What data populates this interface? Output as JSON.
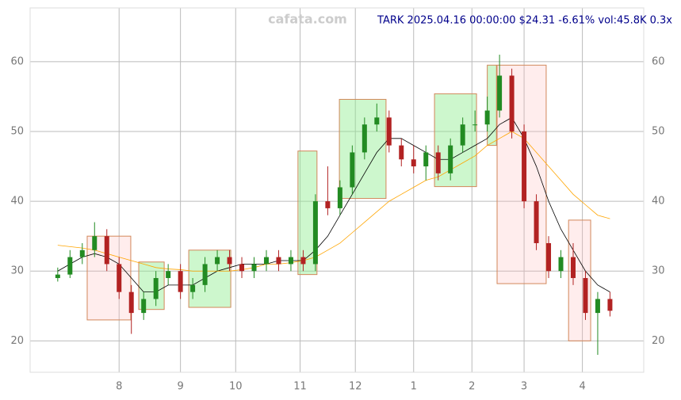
{
  "chart_data": {
    "type": "candlestick",
    "title": "TARK 2025.04.16 00:00:00 $24.31 -6.61% vol:45.8K 0.3x",
    "watermark": "cafata.com",
    "xlim": [
      0,
      200
    ],
    "xticks": [
      {
        "value": 29,
        "label": "8"
      },
      {
        "value": 49,
        "label": "9"
      },
      {
        "value": 67,
        "label": "10"
      },
      {
        "value": 88,
        "label": "11"
      },
      {
        "value": 106,
        "label": "12"
      },
      {
        "value": 125,
        "label": "1"
      },
      {
        "value": 144,
        "label": "2"
      },
      {
        "value": 161,
        "label": "3"
      },
      {
        "value": 180,
        "label": "4"
      }
    ],
    "ylim": [
      15.5,
      67.7
    ],
    "yticks": [
      20,
      30,
      40,
      50,
      60
    ],
    "grid": true,
    "up_color": "#228b22",
    "down_color": "#b22222",
    "x": [
      9,
      13,
      17,
      21,
      25,
      29,
      33,
      37,
      41,
      45,
      49,
      53,
      57,
      61,
      65,
      69,
      73,
      77,
      81,
      85,
      89,
      93,
      97,
      101,
      105,
      109,
      113,
      117,
      121,
      125,
      129,
      133,
      137,
      141,
      145,
      149,
      153,
      157,
      161,
      165,
      169,
      173,
      177,
      181,
      185,
      189
    ],
    "open": [
      29,
      29.5,
      32,
      33,
      35,
      31,
      27,
      24,
      26,
      29,
      30,
      27,
      28,
      31,
      32,
      31,
      30,
      31,
      32,
      31,
      32,
      31,
      40,
      39,
      42,
      47,
      51,
      52,
      48,
      46,
      45,
      47,
      44,
      48,
      51,
      51,
      53,
      58,
      50,
      40,
      34,
      30,
      32,
      29,
      24,
      26
    ],
    "high": [
      30.5,
      33,
      34,
      37,
      36,
      32,
      28,
      27,
      30,
      31,
      31,
      29,
      32,
      33,
      33,
      32,
      32,
      33,
      33,
      33,
      33,
      41,
      45,
      43,
      48,
      52,
      54,
      53,
      49,
      48,
      48,
      48,
      49,
      52,
      53,
      55,
      61,
      59,
      51,
      41,
      35,
      33,
      34,
      30,
      27,
      27
    ],
    "low": [
      28.5,
      29,
      31,
      32,
      30,
      26,
      21,
      23,
      25,
      28,
      26,
      26,
      27,
      30,
      30,
      29,
      29,
      30,
      30,
      30,
      30,
      30,
      38,
      38,
      41,
      46,
      50,
      47,
      45,
      44,
      43,
      43,
      43,
      47,
      50,
      50,
      52,
      49,
      39,
      33,
      29,
      29,
      28,
      23,
      18,
      23.5
    ],
    "close": [
      29.5,
      32,
      33,
      35,
      31,
      27,
      24,
      26,
      29,
      30,
      27,
      28,
      31,
      32,
      31,
      30,
      31,
      32,
      31,
      32,
      31,
      40,
      39,
      42,
      47,
      51,
      52,
      48,
      46,
      45,
      47,
      44,
      48,
      51,
      51,
      53,
      58,
      50,
      40,
      34,
      30,
      32,
      29,
      24,
      26,
      24.31
    ],
    "lines": [
      {
        "color": "#000000",
        "values": [
          30,
          31,
          32,
          32.5,
          32,
          31,
          29,
          27,
          27,
          28,
          28,
          28,
          29,
          30,
          30.5,
          31,
          31,
          31,
          31.5,
          31.5,
          31.5,
          33,
          35,
          38,
          41,
          44,
          47,
          49,
          49,
          48,
          47,
          46,
          46,
          47,
          48,
          49,
          51,
          52,
          49,
          45,
          40,
          36,
          33,
          30,
          28,
          27
        ]
      },
      {
        "color": "#ffa500",
        "values": [
          33.7,
          33.5,
          33.3,
          33,
          32.5,
          32,
          31.5,
          31,
          30.5,
          30.3,
          30.2,
          30,
          30,
          30,
          30,
          30.2,
          30.5,
          31,
          31,
          31.2,
          31.5,
          32,
          33,
          34,
          35.5,
          37,
          38.5,
          40,
          41,
          42,
          43,
          43.5,
          44.5,
          45.5,
          46.5,
          48,
          49,
          50,
          49,
          47,
          45,
          43,
          41,
          39.5,
          38,
          37.5
        ]
      }
    ],
    "boxes": [
      {
        "x0": 18.6,
        "x1": 32.8,
        "low": 23,
        "high": 35,
        "color": "red"
      },
      {
        "x0": 35.4,
        "x1": 43.7,
        "low": 24.5,
        "high": 31.3,
        "color": "green"
      },
      {
        "x0": 51.7,
        "x1": 65.4,
        "low": 24.8,
        "high": 33,
        "color": "green"
      },
      {
        "x0": 87.3,
        "x1": 93.5,
        "low": 29.5,
        "high": 47.2,
        "color": "green"
      },
      {
        "x0": 100.8,
        "x1": 116,
        "low": 40.4,
        "high": 54.6,
        "color": "green"
      },
      {
        "x0": 131.8,
        "x1": 145.5,
        "low": 42.1,
        "high": 55.4,
        "color": "green"
      },
      {
        "x0": 149,
        "x1": 152,
        "low": 48,
        "high": 59.5,
        "color": "green"
      },
      {
        "x0": 152.2,
        "x1": 168.2,
        "low": 28.2,
        "high": 59.5,
        "color": "red"
      },
      {
        "x0": 175.5,
        "x1": 182.7,
        "low": 20,
        "high": 37.3,
        "color": "red"
      }
    ]
  }
}
